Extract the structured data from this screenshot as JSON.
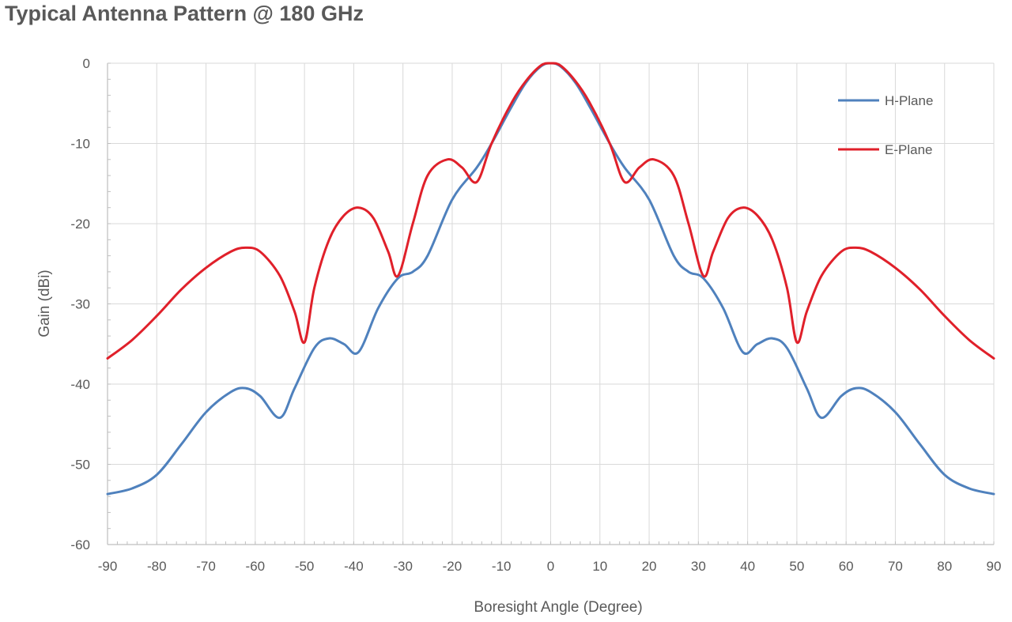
{
  "chart_data": {
    "type": "line",
    "title": "Typical Antenna Pattern @ 180 GHz",
    "xlabel": "Boresight Angle (Degree)",
    "ylabel": "Gain (dBi)",
    "xlim": [
      -90,
      90
    ],
    "ylim": [
      -60,
      0
    ],
    "xticks": [
      -90,
      -80,
      -70,
      -60,
      -50,
      -40,
      -30,
      -20,
      -10,
      0,
      10,
      20,
      30,
      40,
      50,
      60,
      70,
      80,
      90
    ],
    "yticks": [
      0,
      -10,
      -20,
      -30,
      -40,
      -50,
      -60
    ],
    "grid": true,
    "legend_position": "top-right",
    "series": [
      {
        "name": "H-Plane",
        "color": "#4f81bd",
        "x": [
          -90,
          -85,
          -80,
          -75,
          -70,
          -65,
          -62,
          -59,
          -55,
          -52,
          -48,
          -45,
          -42,
          -39,
          -35,
          -31,
          -28,
          -25,
          -20,
          -15,
          -12,
          -8,
          -5,
          -2,
          0,
          2,
          5,
          8,
          12,
          15,
          20,
          25,
          28,
          31,
          35,
          39,
          42,
          45,
          48,
          52,
          55,
          59,
          62,
          65,
          70,
          75,
          80,
          85,
          90
        ],
        "y": [
          -53.7,
          -53,
          -51.3,
          -47.5,
          -43.5,
          -41,
          -40.5,
          -41.5,
          -44.2,
          -40.5,
          -35.5,
          -34.3,
          -35,
          -36,
          -30.5,
          -26.8,
          -26,
          -24,
          -17,
          -13,
          -10,
          -5.5,
          -2.4,
          -0.4,
          0,
          -0.4,
          -2.4,
          -5.5,
          -10,
          -13,
          -17,
          -24,
          -26,
          -26.8,
          -30.5,
          -36,
          -35,
          -34.3,
          -35.5,
          -40.5,
          -44.2,
          -41.5,
          -40.5,
          -41,
          -43.5,
          -47.5,
          -51.3,
          -53,
          -53.7
        ]
      },
      {
        "name": "E-Plane",
        "color": "#e0202a",
        "x": [
          -90,
          -85,
          -80,
          -75,
          -70,
          -65,
          -62,
          -59,
          -55,
          -52,
          -50,
          -48,
          -45,
          -42,
          -39,
          -36,
          -33,
          -31,
          -28,
          -25,
          -21,
          -18,
          -15,
          -12,
          -8,
          -5,
          -2,
          0,
          2,
          5,
          8,
          12,
          15,
          18,
          21,
          25,
          28,
          31,
          33,
          36,
          39,
          42,
          45,
          48,
          50,
          52,
          55,
          59,
          62,
          65,
          70,
          75,
          80,
          85,
          90
        ],
        "y": [
          -36.8,
          -34.5,
          -31.5,
          -28.2,
          -25.5,
          -23.5,
          -23,
          -23.5,
          -26.5,
          -31,
          -34.8,
          -28,
          -22,
          -19,
          -18,
          -19.3,
          -23.5,
          -26.5,
          -20,
          -14,
          -12,
          -13,
          -14.8,
          -10,
          -5,
          -2.2,
          -0.3,
          0,
          -0.3,
          -2.2,
          -5,
          -10,
          -14.8,
          -13,
          -12,
          -14,
          -20,
          -26.5,
          -23.5,
          -19.3,
          -18,
          -19,
          -22,
          -28,
          -34.8,
          -31,
          -26.5,
          -23.5,
          -23,
          -23.5,
          -25.5,
          -28.2,
          -31.5,
          -34.5,
          -36.8
        ]
      }
    ]
  }
}
